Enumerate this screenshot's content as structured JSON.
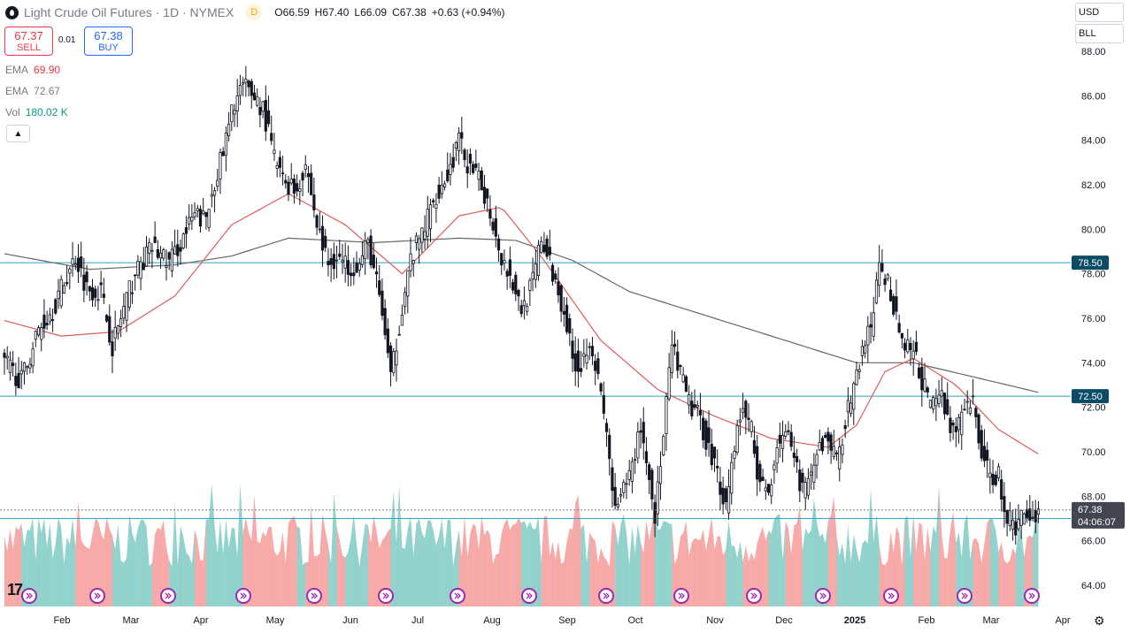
{
  "header": {
    "title": "Light Crude Oil Futures · 1D · NYMEX",
    "badge": "D",
    "open_label": "O",
    "open": "66.59",
    "high_label": "H",
    "high": "67.40",
    "low_label": "L",
    "low": "66.09",
    "close_label": "C",
    "close": "67.38",
    "change": "+0.63 (+0.94%)"
  },
  "trade": {
    "sell_price": "67.37",
    "sell_label": "SELL",
    "spread": "0.01",
    "buy_price": "67.38",
    "buy_label": "BUY"
  },
  "indicators": [
    {
      "name": "EMA",
      "value": "69.90",
      "color": "#f23645"
    },
    {
      "name": "EMA",
      "value": "72.67",
      "color": "#787b86"
    },
    {
      "name": "Vol",
      "value": "180.02 K",
      "color": "#089981"
    }
  ],
  "controls": {
    "currency": "USD",
    "unit": "BLL",
    "collapse_icon": "chevron-up-icon"
  },
  "branding": {
    "logo": "17"
  },
  "price_box": {
    "price": "67.38",
    "countdown": "04:06:07"
  },
  "colors": {
    "up": "#26a69a",
    "down": "#ef5350",
    "ema_short": "#e05a5a",
    "ema_long": "#666666",
    "level_line": "#26a6c8",
    "candle": "#131722"
  },
  "chart_data": {
    "type": "candlestick",
    "yaxis": {
      "min": 64,
      "max": 88,
      "ticks": [
        "64.00",
        "66.00",
        "68.00",
        "70.00",
        "72.00",
        "74.00",
        "76.00",
        "78.00",
        "80.00",
        "82.00",
        "84.00",
        "86.00",
        "88.00"
      ]
    },
    "xaxis": {
      "labels": [
        "Feb",
        "Mar",
        "Apr",
        "May",
        "Jun",
        "Jul",
        "Aug",
        "Sep",
        "Oct",
        "Nov",
        "Dec",
        "2025",
        "Feb",
        "Mar",
        "Apr"
      ],
      "bold_label": "2025"
    },
    "levels": [
      {
        "price": 78.5,
        "label": "78.50"
      },
      {
        "price": 72.5,
        "label": "72.50"
      },
      {
        "price": 67.0,
        "label": "67.00"
      }
    ],
    "current_price": 67.38,
    "price_path": [
      [
        0,
        74.0
      ],
      [
        6,
        73.2
      ],
      [
        12,
        75.5
      ],
      [
        17,
        76.4
      ],
      [
        23,
        78.2
      ],
      [
        25,
        78.8
      ],
      [
        29,
        77.4
      ],
      [
        34,
        77.2
      ],
      [
        38,
        74.8
      ],
      [
        42,
        76.4
      ],
      [
        46,
        78.0
      ],
      [
        52,
        79.2
      ],
      [
        58,
        78.5
      ],
      [
        62,
        79.4
      ],
      [
        67,
        80.6
      ],
      [
        71,
        80.4
      ],
      [
        74,
        82.2
      ],
      [
        77,
        83.4
      ],
      [
        81,
        85.8
      ],
      [
        84,
        86.4
      ],
      [
        88,
        86.0
      ],
      [
        91,
        85.4
      ],
      [
        95,
        83.2
      ],
      [
        98,
        82.2
      ],
      [
        103,
        81.8
      ],
      [
        106,
        83.0
      ],
      [
        110,
        80.2
      ],
      [
        114,
        78.4
      ],
      [
        117,
        78.8
      ],
      [
        120,
        78.4
      ],
      [
        125,
        78.4
      ],
      [
        128,
        79.4
      ],
      [
        131,
        77.6
      ],
      [
        134,
        75.4
      ],
      [
        136,
        73.2
      ],
      [
        140,
        76.6
      ],
      [
        143,
        78.6
      ],
      [
        147,
        79.8
      ],
      [
        152,
        81.6
      ],
      [
        156,
        82.4
      ],
      [
        160,
        84.0
      ],
      [
        164,
        82.6
      ],
      [
        168,
        82.0
      ],
      [
        171,
        80.8
      ],
      [
        175,
        78.8
      ],
      [
        179,
        77.6
      ],
      [
        182,
        76.4
      ],
      [
        186,
        77.6
      ],
      [
        189,
        79.6
      ],
      [
        193,
        78.0
      ],
      [
        197,
        76.4
      ],
      [
        200,
        74.2
      ],
      [
        203,
        73.8
      ],
      [
        206,
        75.2
      ],
      [
        209,
        73.2
      ],
      [
        212,
        70.8
      ],
      [
        215,
        67.2
      ],
      [
        218,
        68.2
      ],
      [
        221,
        69.4
      ],
      [
        224,
        71.2
      ],
      [
        226,
        69.6
      ],
      [
        229,
        67.2
      ],
      [
        232,
        70.6
      ],
      [
        235,
        74.8
      ],
      [
        238,
        73.4
      ],
      [
        241,
        72.2
      ],
      [
        245,
        71.4
      ],
      [
        248,
        70.2
      ],
      [
        251,
        69.0
      ],
      [
        254,
        67.6
      ],
      [
        257,
        70.4
      ],
      [
        260,
        72.0
      ],
      [
        263,
        71.0
      ],
      [
        266,
        68.4
      ],
      [
        269,
        68.2
      ],
      [
        272,
        70.4
      ],
      [
        275,
        71.0
      ],
      [
        278,
        69.4
      ],
      [
        281,
        68.4
      ],
      [
        284,
        68.6
      ],
      [
        287,
        70.2
      ],
      [
        290,
        70.6
      ],
      [
        293,
        69.6
      ],
      [
        296,
        71.4
      ],
      [
        299,
        72.8
      ],
      [
        302,
        74.6
      ],
      [
        305,
        75.6
      ],
      [
        308,
        78.2
      ],
      [
        311,
        77.6
      ],
      [
        314,
        76.2
      ],
      [
        317,
        74.6
      ],
      [
        320,
        74.6
      ],
      [
        323,
        73.2
      ],
      [
        326,
        72.0
      ],
      [
        329,
        72.8
      ],
      [
        332,
        71.6
      ],
      [
        335,
        70.8
      ],
      [
        338,
        71.8
      ],
      [
        341,
        72.2
      ],
      [
        344,
        70.0
      ],
      [
        347,
        68.8
      ],
      [
        350,
        69.0
      ],
      [
        353,
        67.0
      ],
      [
        356,
        66.6
      ],
      [
        359,
        67.4
      ],
      [
        362,
        67.0
      ],
      [
        364,
        67.38
      ]
    ],
    "ema_short": [
      [
        0,
        75.9
      ],
      [
        20,
        75.2
      ],
      [
        40,
        75.4
      ],
      [
        60,
        77.0
      ],
      [
        80,
        80.2
      ],
      [
        100,
        81.6
      ],
      [
        120,
        80.2
      ],
      [
        140,
        78.0
      ],
      [
        160,
        80.6
      ],
      [
        175,
        81.0
      ],
      [
        190,
        78.6
      ],
      [
        210,
        75.0
      ],
      [
        230,
        72.8
      ],
      [
        250,
        71.6
      ],
      [
        270,
        70.6
      ],
      [
        290,
        70.2
      ],
      [
        300,
        71.2
      ],
      [
        310,
        73.6
      ],
      [
        320,
        74.2
      ],
      [
        335,
        73.0
      ],
      [
        350,
        71.0
      ],
      [
        364,
        69.9
      ]
    ],
    "ema_long": [
      [
        0,
        78.9
      ],
      [
        30,
        78.2
      ],
      [
        60,
        78.4
      ],
      [
        80,
        78.8
      ],
      [
        100,
        79.6
      ],
      [
        130,
        79.4
      ],
      [
        160,
        79.6
      ],
      [
        180,
        79.5
      ],
      [
        200,
        78.6
      ],
      [
        220,
        77.2
      ],
      [
        250,
        76.0
      ],
      [
        280,
        74.8
      ],
      [
        300,
        74.0
      ],
      [
        320,
        74.0
      ],
      [
        340,
        73.4
      ],
      [
        364,
        72.67
      ]
    ]
  }
}
